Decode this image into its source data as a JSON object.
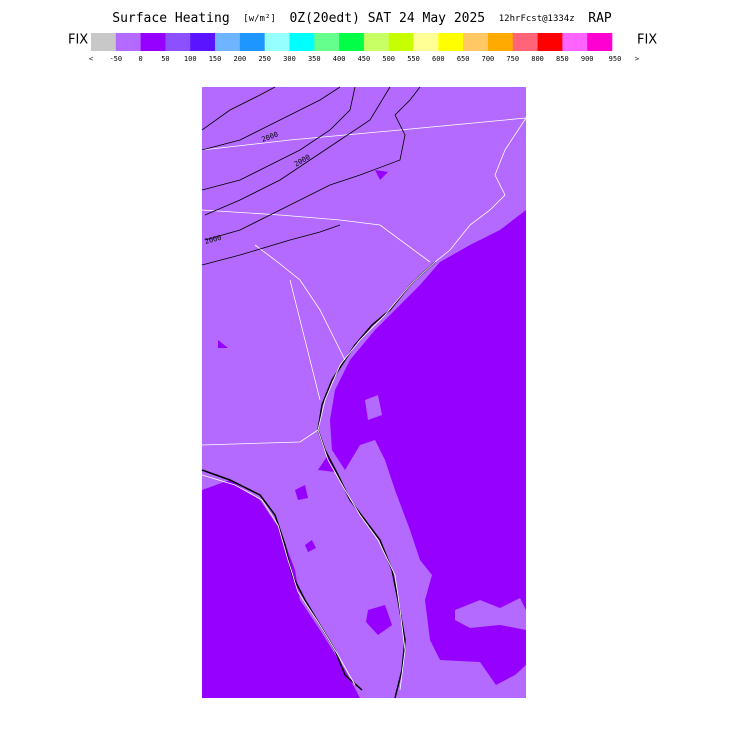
{
  "header": {
    "title_parts": [
      "Surface Heating",
      "[w/m²]",
      "0Z(20edt) SAT 24 May 2025",
      "12hrFcst@1334z",
      "RAP"
    ],
    "fix_left": "FIX",
    "fix_right": "FIX"
  },
  "colorbar": {
    "below_label": "<",
    "above_label": ">",
    "labels": [
      "-50",
      "0",
      "50",
      "100",
      "150",
      "200",
      "250",
      "300",
      "350",
      "400",
      "450",
      "500",
      "550",
      "600",
      "650",
      "700",
      "750",
      "800",
      "850",
      "900",
      "950"
    ],
    "colors": [
      "#c8c8c8",
      "#b469ff",
      "#9600ff",
      "#8c50ff",
      "#5a14ff",
      "#6eb4ff",
      "#1e96ff",
      "#96ffff",
      "#00ffff",
      "#64ff8c",
      "#00ff46",
      "#c8ff64",
      "#c8ff00",
      "#ffff96",
      "#ffff00",
      "#ffc864",
      "#ffaa00",
      "#ff6478",
      "#ff0000",
      "#ff64ff",
      "#ff00d2"
    ]
  },
  "map": {
    "contour_labels": [
      "2000",
      "2000",
      "2000"
    ]
  }
}
